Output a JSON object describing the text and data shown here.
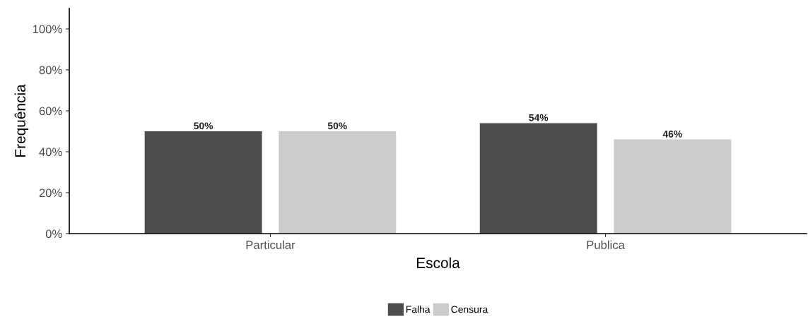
{
  "chart_data": {
    "type": "bar",
    "xlabel": "Escola",
    "ylabel": "Frequência",
    "categories": [
      "Particular",
      "Publica"
    ],
    "series": [
      {
        "name": "Falha",
        "color": "#4d4d4d",
        "values": [
          50,
          54
        ],
        "value_labels": [
          "50%",
          "54%"
        ]
      },
      {
        "name": "Censura",
        "color": "#cccccc",
        "values": [
          50,
          46
        ],
        "value_labels": [
          "50%",
          "46%"
        ]
      }
    ],
    "ylim": [
      0,
      110
    ],
    "yticks": [
      {
        "value": 0,
        "label": "0%"
      },
      {
        "value": 20,
        "label": "20%"
      },
      {
        "value": 40,
        "label": "40%"
      },
      {
        "value": 60,
        "label": "60%"
      },
      {
        "value": 80,
        "label": "80%"
      },
      {
        "value": 100,
        "label": "100%"
      }
    ],
    "grid": false,
    "legend": "bottom"
  }
}
